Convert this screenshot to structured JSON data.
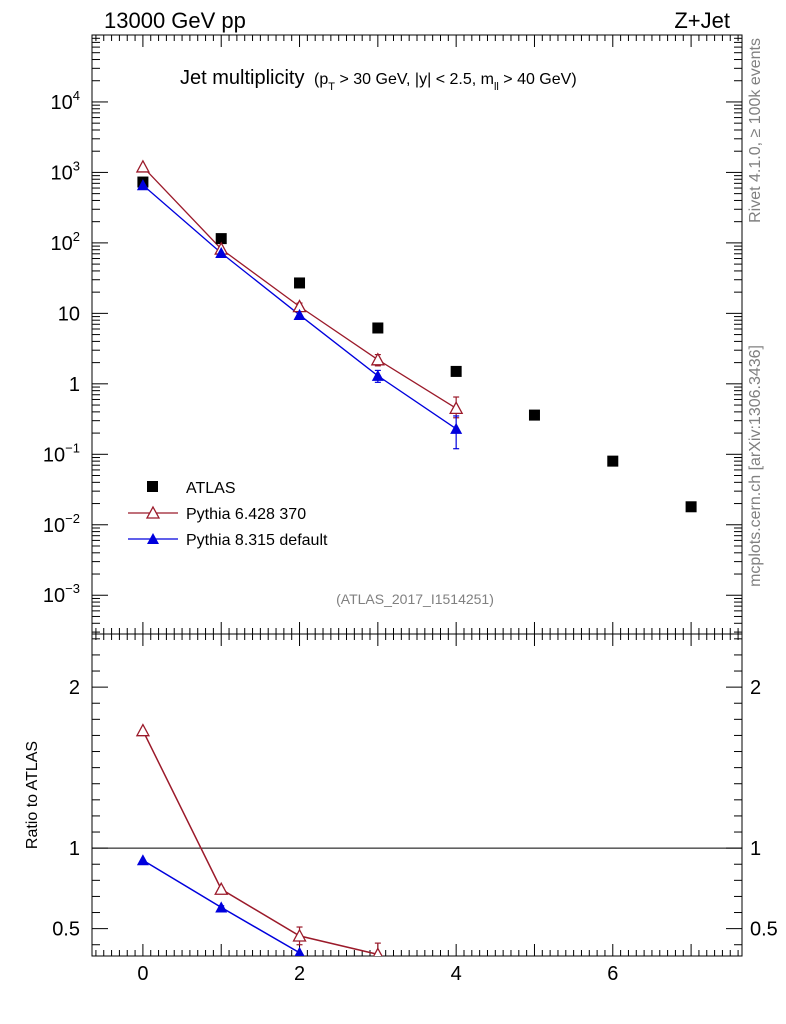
{
  "header": {
    "left": "13000 GeV pp",
    "right": "Z+Jet"
  },
  "side_labels": {
    "rivet": "Rivet 4.1.0, ≥ 100k events",
    "mcplots": "mcplots.cern.ch [arXiv:1306.3436]"
  },
  "analysis_id": "(ATLAS_2017_I1514251)",
  "colors": {
    "atlas": "#000000",
    "pythia6": "#9b1a2a",
    "pythia8": "#0000dd"
  },
  "chart_data": [
    {
      "type": "scatter",
      "title": "Jet multiplicity",
      "subtitle": {
        "pt": "(p",
        "pt_sub": "T",
        "pt_rest": " > 30 GeV, |y| < 2.5, m",
        "m_sub": "ll",
        "m_rest": " > 40 GeV)"
      },
      "yscale": "log",
      "xlim": [
        -0.65,
        7.65
      ],
      "ylim_log10": [
        -3.55,
        4.95
      ],
      "x_ticks": [
        "0",
        "2",
        "4",
        "6"
      ],
      "y_ticks": [
        {
          "exp": 4,
          "label": "10",
          "sup": "4"
        },
        {
          "exp": 3,
          "label": "10",
          "sup": "3"
        },
        {
          "exp": 2,
          "label": "10",
          "sup": "2"
        },
        {
          "exp": 1,
          "label": "10",
          "sup": ""
        },
        {
          "exp": 0,
          "label": "1",
          "sup": ""
        },
        {
          "exp": -1,
          "label": "10",
          "sup": "−1"
        },
        {
          "exp": -2,
          "label": "10",
          "sup": "−2"
        },
        {
          "exp": -3,
          "label": "10",
          "sup": "−3"
        }
      ],
      "legend": {
        "placement": "bottom-left",
        "entries": [
          "ATLAS",
          "Pythia 6.428 370",
          "Pythia 8.315 default"
        ]
      },
      "series": [
        {
          "name": "ATLAS",
          "marker": "square",
          "x": [
            0,
            1,
            2,
            3,
            4,
            5,
            6,
            7
          ],
          "y": [
            730,
            115,
            27,
            6.2,
            1.5,
            0.36,
            0.08,
            0.018
          ],
          "yerr_lo": [
            0,
            0,
            0,
            0,
            0,
            0,
            0,
            0
          ],
          "yerr_hi": [
            0,
            0,
            0,
            0,
            0,
            0,
            0,
            0
          ]
        },
        {
          "name": "Pythia 6.428 370",
          "marker": "open-triangle",
          "x": [
            0,
            1,
            2,
            3,
            4
          ],
          "y": [
            1200,
            82,
            12.5,
            2.2,
            0.45
          ],
          "yerr_lo": [
            0,
            0,
            1.5,
            0.4,
            0.12
          ],
          "yerr_hi": [
            0,
            0,
            1.5,
            0.4,
            0.2
          ]
        },
        {
          "name": "Pythia 8.315 default",
          "marker": "filled-triangle",
          "x": [
            0,
            1,
            2,
            3,
            4
          ],
          "y": [
            660,
            72,
            9.5,
            1.3,
            0.23
          ],
          "yerr_lo": [
            0,
            0,
            0,
            0.25,
            0.11
          ],
          "yerr_hi": [
            0,
            0,
            0,
            0.25,
            0.12
          ]
        }
      ]
    },
    {
      "type": "line",
      "ylabel": "Ratio to ATLAS",
      "xlim": [
        -0.65,
        7.65
      ],
      "ylim": [
        0.33,
        2.33
      ],
      "y_ticks": [
        "0.5",
        "1",
        "2"
      ],
      "reference_line": 1,
      "series": [
        {
          "name": "Pythia 6.428 370",
          "x": [
            0,
            1,
            2,
            3
          ],
          "y": [
            1.73,
            0.745,
            0.455,
            0.34
          ],
          "yerr_lo": [
            0,
            0.01,
            0.055,
            0.07
          ],
          "yerr_hi": [
            0,
            0.01,
            0.055,
            0.07
          ]
        },
        {
          "name": "Pythia 8.315 default",
          "x": [
            0,
            1,
            2
          ],
          "y": [
            0.925,
            0.632,
            0.35
          ],
          "yerr_lo": [
            0,
            0.01,
            0
          ],
          "yerr_hi": [
            0,
            0.01,
            0
          ]
        }
      ]
    }
  ]
}
